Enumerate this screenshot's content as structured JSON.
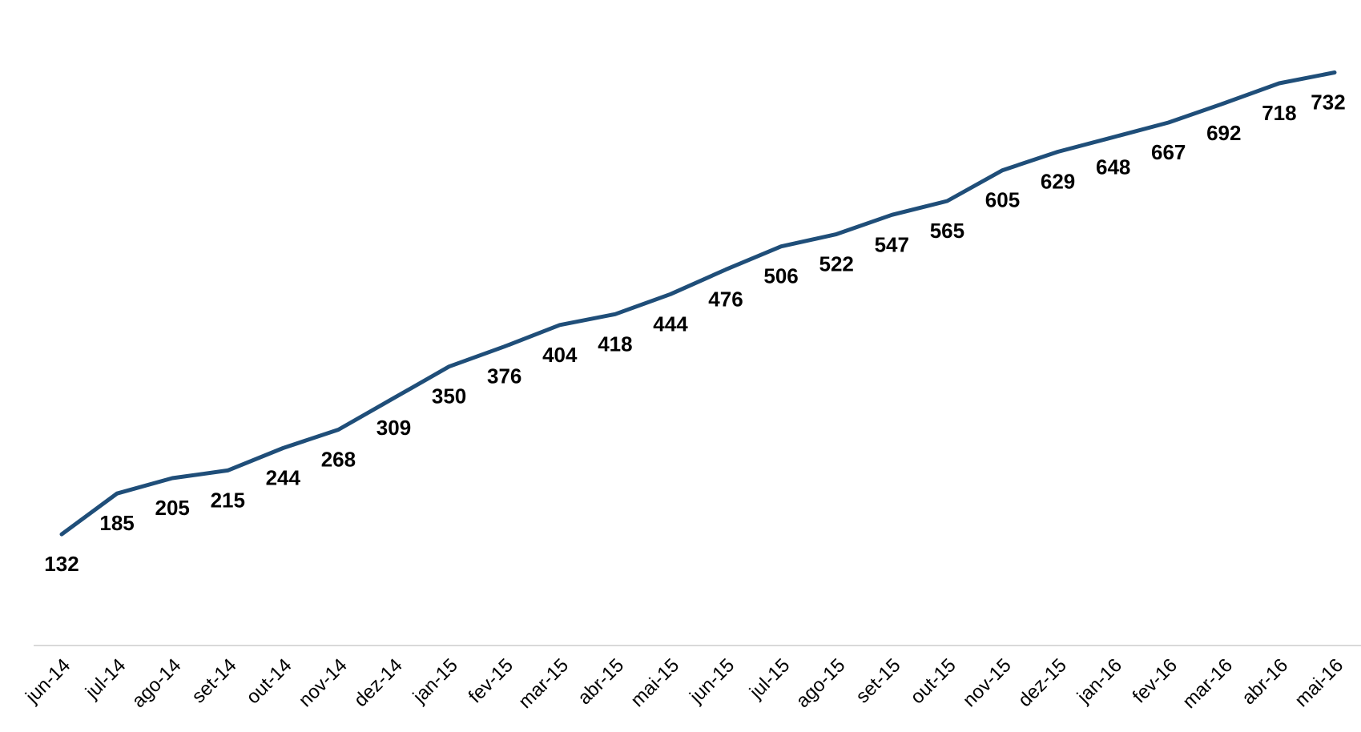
{
  "chart_data": {
    "type": "line",
    "title": "",
    "xlabel": "",
    "ylabel": "",
    "categories": [
      "jun-14",
      "jul-14",
      "ago-14",
      "set-14",
      "out-14",
      "nov-14",
      "dez-14",
      "jan-15",
      "fev-15",
      "mar-15",
      "abr-15",
      "mai-15",
      "jun-15",
      "jul-15",
      "ago-15",
      "set-15",
      "out-15",
      "nov-15",
      "dez-15",
      "jan-16",
      "fev-16",
      "mar-16",
      "abr-16",
      "mai-16"
    ],
    "series": [
      {
        "values": [
          132,
          185,
          205,
          215,
          244,
          268,
          309,
          350,
          376,
          404,
          418,
          444,
          476,
          506,
          522,
          547,
          565,
          605,
          629,
          648,
          667,
          692,
          718,
          732
        ],
        "color": "#1f4e79"
      }
    ],
    "ylim": [
      0,
      750
    ],
    "grid": false,
    "legend": "none",
    "axis_color": "#d9d9d9"
  }
}
